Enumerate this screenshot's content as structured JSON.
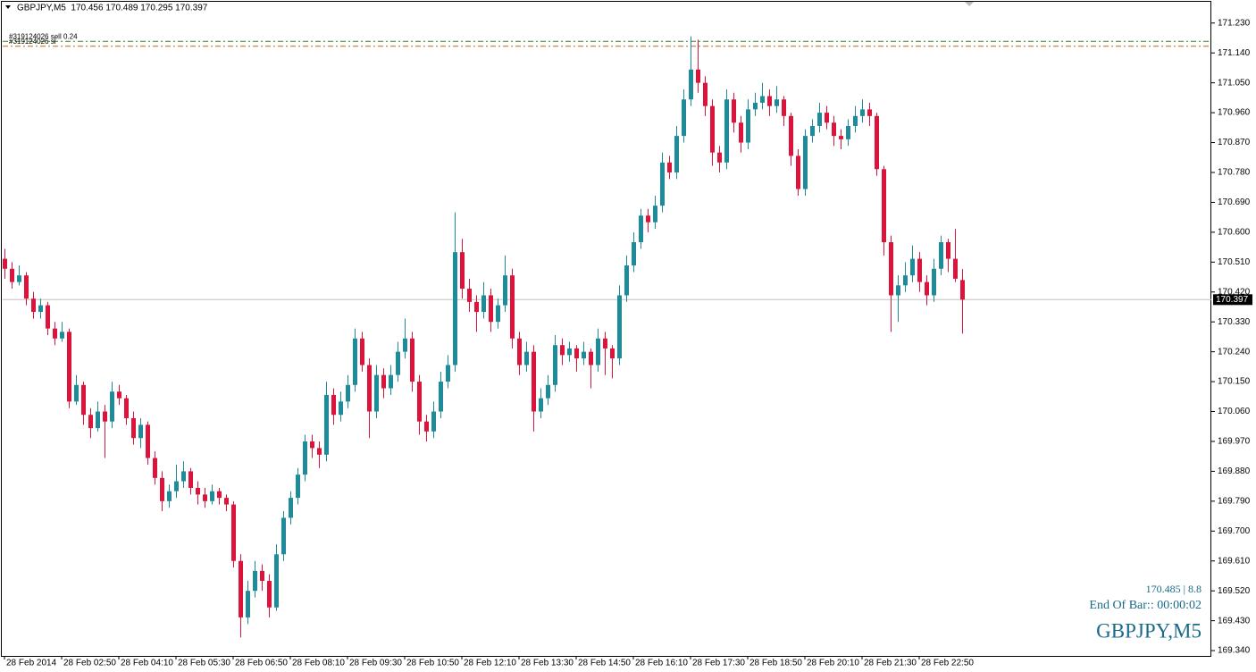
{
  "chart_data": {
    "type": "candlestick",
    "header": "GBPJPY,M5  170.456 170.489 170.295 170.397",
    "bull_color": "#1e8b9b",
    "bear_color": "#dc143c",
    "ylim": [
      169.324,
      171.294
    ],
    "yticks": [
      {
        "value": 171.23,
        "label": "171.230"
      },
      {
        "value": 171.14,
        "label": "171.140"
      },
      {
        "value": 171.05,
        "label": "171.050"
      },
      {
        "value": 170.96,
        "label": "170.960"
      },
      {
        "value": 170.87,
        "label": "170.870"
      },
      {
        "value": 170.78,
        "label": "170.780"
      },
      {
        "value": 170.69,
        "label": "170.690"
      },
      {
        "value": 170.6,
        "label": "170.600"
      },
      {
        "value": 170.51,
        "label": "170.510"
      },
      {
        "value": 170.42,
        "label": "170.420"
      },
      {
        "value": 170.33,
        "label": "170.330"
      },
      {
        "value": 170.24,
        "label": "170.240"
      },
      {
        "value": 170.15,
        "label": "170.150"
      },
      {
        "value": 170.06,
        "label": "170.060"
      },
      {
        "value": 169.97,
        "label": "169.970"
      },
      {
        "value": 169.88,
        "label": "169.880"
      },
      {
        "value": 169.79,
        "label": "169.790"
      },
      {
        "value": 169.7,
        "label": "169.700"
      },
      {
        "value": 169.61,
        "label": "169.610"
      },
      {
        "value": 169.52,
        "label": "169.520"
      },
      {
        "value": 169.43,
        "label": "169.430"
      },
      {
        "value": 169.34,
        "label": "169.340"
      }
    ],
    "xticks": [
      {
        "value": 0,
        "label": "28 Feb 2014"
      },
      {
        "value": 8,
        "label": "28 Feb 02:50"
      },
      {
        "value": 16,
        "label": "28 Feb 04:10"
      },
      {
        "value": 24,
        "label": "28 Feb 05:30"
      },
      {
        "value": 32,
        "label": "28 Feb 06:50"
      },
      {
        "value": 40,
        "label": "28 Feb 08:10"
      },
      {
        "value": 48,
        "label": "28 Feb 09:30"
      },
      {
        "value": 56,
        "label": "28 Feb 10:50"
      },
      {
        "value": 64,
        "label": "28 Feb 12:10"
      },
      {
        "value": 72,
        "label": "28 Feb 13:30"
      },
      {
        "value": 80,
        "label": "28 Feb 14:50"
      },
      {
        "value": 88,
        "label": "28 Feb 16:10"
      },
      {
        "value": 96,
        "label": "28 Feb 17:30"
      },
      {
        "value": 104,
        "label": "28 Feb 18:50"
      },
      {
        "value": 112,
        "label": "28 Feb 20:10"
      },
      {
        "value": 120,
        "label": "28 Feb 21:30"
      },
      {
        "value": 128,
        "label": "28 Feb 22:50"
      }
    ],
    "current_price": {
      "value": 170.397,
      "label": "170.397"
    },
    "orders": [
      {
        "label": "#319124026 sell 0.24",
        "price": 171.175,
        "color": "#2e7d32"
      },
      {
        "label": "#319124026 sl",
        "price": 171.16,
        "color": "#cc6600"
      }
    ],
    "info": {
      "price_spread": "170.485 | 8.8",
      "end_of_bar": "End Of Bar:: 00:00:02",
      "symbol": "GBPJPY,M5"
    },
    "ohlc": [
      [
        170.52,
        170.55,
        170.46,
        170.49
      ],
      [
        170.49,
        170.51,
        170.43,
        170.45
      ],
      [
        170.45,
        170.5,
        170.44,
        170.47
      ],
      [
        170.47,
        170.48,
        170.38,
        170.4
      ],
      [
        170.4,
        170.42,
        170.34,
        170.36
      ],
      [
        170.36,
        170.4,
        170.34,
        170.38
      ],
      [
        170.38,
        170.39,
        170.29,
        170.31
      ],
      [
        170.31,
        170.33,
        170.26,
        170.28
      ],
      [
        170.28,
        170.33,
        170.27,
        170.3
      ],
      [
        170.3,
        170.31,
        170.07,
        170.09
      ],
      [
        170.09,
        170.17,
        170.08,
        170.14
      ],
      [
        170.14,
        170.15,
        170.02,
        170.05
      ],
      [
        170.05,
        170.07,
        169.98,
        170.01
      ],
      [
        170.01,
        170.09,
        170.0,
        170.06
      ],
      [
        170.06,
        170.08,
        169.92,
        170.03
      ],
      [
        170.03,
        170.15,
        170.01,
        170.12
      ],
      [
        170.12,
        170.14,
        170.08,
        170.1
      ],
      [
        170.1,
        170.11,
        170.02,
        170.04
      ],
      [
        170.04,
        170.06,
        169.96,
        169.98
      ],
      [
        169.98,
        170.04,
        169.95,
        170.02
      ],
      [
        170.02,
        170.03,
        169.9,
        169.92
      ],
      [
        169.92,
        169.94,
        169.84,
        169.86
      ],
      [
        169.86,
        169.88,
        169.76,
        169.79
      ],
      [
        169.79,
        169.84,
        169.77,
        169.82
      ],
      [
        169.82,
        169.9,
        169.8,
        169.85
      ],
      [
        169.85,
        169.91,
        169.83,
        169.88
      ],
      [
        169.88,
        169.89,
        169.81,
        169.83
      ],
      [
        169.83,
        169.85,
        169.78,
        169.81
      ],
      [
        169.81,
        169.83,
        169.77,
        169.79
      ],
      [
        169.79,
        169.84,
        169.78,
        169.82
      ],
      [
        169.82,
        169.83,
        169.78,
        169.8
      ],
      [
        169.8,
        169.81,
        169.76,
        169.78
      ],
      [
        169.78,
        169.79,
        169.59,
        169.61
      ],
      [
        169.61,
        169.63,
        169.38,
        169.44
      ],
      [
        169.44,
        169.55,
        169.42,
        169.52
      ],
      [
        169.52,
        169.61,
        169.5,
        169.58
      ],
      [
        169.58,
        169.6,
        169.52,
        169.55
      ],
      [
        169.55,
        169.57,
        169.44,
        169.47
      ],
      [
        169.47,
        169.66,
        169.46,
        169.63
      ],
      [
        169.63,
        169.76,
        169.61,
        169.74
      ],
      [
        169.74,
        169.82,
        169.72,
        169.8
      ],
      [
        169.8,
        169.89,
        169.78,
        169.87
      ],
      [
        169.87,
        169.99,
        169.85,
        169.97
      ],
      [
        169.97,
        169.99,
        169.92,
        169.95
      ],
      [
        169.95,
        169.97,
        169.89,
        169.93
      ],
      [
        169.93,
        170.15,
        169.91,
        170.11
      ],
      [
        170.11,
        170.13,
        170.02,
        170.05
      ],
      [
        170.05,
        170.12,
        170.03,
        170.09
      ],
      [
        170.09,
        170.17,
        170.07,
        170.14
      ],
      [
        170.14,
        170.31,
        170.12,
        170.28
      ],
      [
        170.28,
        170.3,
        170.18,
        170.2
      ],
      [
        170.2,
        170.22,
        169.98,
        170.06
      ],
      [
        170.06,
        170.2,
        170.04,
        170.17
      ],
      [
        170.17,
        170.19,
        170.1,
        170.13
      ],
      [
        170.13,
        170.2,
        170.11,
        170.17
      ],
      [
        170.17,
        170.27,
        170.15,
        170.24
      ],
      [
        170.24,
        170.34,
        170.22,
        170.28
      ],
      [
        170.28,
        170.3,
        170.12,
        170.15
      ],
      [
        170.15,
        170.17,
        169.99,
        170.03
      ],
      [
        170.03,
        170.05,
        169.97,
        170.0
      ],
      [
        170.0,
        170.09,
        169.98,
        170.06
      ],
      [
        170.06,
        170.18,
        170.04,
        170.15
      ],
      [
        170.15,
        170.23,
        170.13,
        170.2
      ],
      [
        170.2,
        170.66,
        170.18,
        170.54
      ],
      [
        170.54,
        170.58,
        170.4,
        170.43
      ],
      [
        170.43,
        170.46,
        170.36,
        170.39
      ],
      [
        170.39,
        170.41,
        170.3,
        170.36
      ],
      [
        170.36,
        170.45,
        170.34,
        170.41
      ],
      [
        170.41,
        170.43,
        170.3,
        170.33
      ],
      [
        170.33,
        170.4,
        170.31,
        170.38
      ],
      [
        170.38,
        170.53,
        170.36,
        170.47
      ],
      [
        170.47,
        170.49,
        170.25,
        170.28
      ],
      [
        170.28,
        170.3,
        170.17,
        170.2
      ],
      [
        170.2,
        170.27,
        170.18,
        170.24
      ],
      [
        170.24,
        170.26,
        170.0,
        170.06
      ],
      [
        170.06,
        170.13,
        170.04,
        170.1
      ],
      [
        170.1,
        170.17,
        170.08,
        170.14
      ],
      [
        170.14,
        170.29,
        170.12,
        170.26
      ],
      [
        170.26,
        170.28,
        170.2,
        170.23
      ],
      [
        170.23,
        170.27,
        170.21,
        170.25
      ],
      [
        170.25,
        170.26,
        170.18,
        170.22
      ],
      [
        170.22,
        170.27,
        170.2,
        170.24
      ],
      [
        170.24,
        170.25,
        170.13,
        170.2
      ],
      [
        170.2,
        170.31,
        170.18,
        170.28
      ],
      [
        170.28,
        170.3,
        170.17,
        170.25
      ],
      [
        170.25,
        170.26,
        170.16,
        170.22
      ],
      [
        170.22,
        170.44,
        170.2,
        170.41
      ],
      [
        170.41,
        170.53,
        170.39,
        170.5
      ],
      [
        170.5,
        170.6,
        170.48,
        170.57
      ],
      [
        170.57,
        170.67,
        170.55,
        170.65
      ],
      [
        170.65,
        170.67,
        170.6,
        170.63
      ],
      [
        170.63,
        170.71,
        170.61,
        170.68
      ],
      [
        170.68,
        170.84,
        170.66,
        170.81
      ],
      [
        170.81,
        170.83,
        170.76,
        170.78
      ],
      [
        170.78,
        170.92,
        170.76,
        170.89
      ],
      [
        170.89,
        171.03,
        170.87,
        171.0
      ],
      [
        171.0,
        171.19,
        170.98,
        171.09
      ],
      [
        171.09,
        171.18,
        171.02,
        171.05
      ],
      [
        171.05,
        171.07,
        170.95,
        170.98
      ],
      [
        170.98,
        171.0,
        170.8,
        170.84
      ],
      [
        170.84,
        170.86,
        170.78,
        170.81
      ],
      [
        170.81,
        171.03,
        170.79,
        171.0
      ],
      [
        171.0,
        171.02,
        170.9,
        170.93
      ],
      [
        170.93,
        170.95,
        170.84,
        170.87
      ],
      [
        170.87,
        171.0,
        170.85,
        170.97
      ],
      [
        170.97,
        171.02,
        170.95,
        170.99
      ],
      [
        170.99,
        171.05,
        170.97,
        171.01
      ],
      [
        171.01,
        171.03,
        170.95,
        170.98
      ],
      [
        170.98,
        171.04,
        170.96,
        171.0
      ],
      [
        171.0,
        171.01,
        170.92,
        170.95
      ],
      [
        170.95,
        170.96,
        170.8,
        170.83
      ],
      [
        170.83,
        170.85,
        170.71,
        170.73
      ],
      [
        170.73,
        170.91,
        170.71,
        170.89
      ],
      [
        170.89,
        170.94,
        170.87,
        170.92
      ],
      [
        170.92,
        170.99,
        170.9,
        170.96
      ],
      [
        170.96,
        170.98,
        170.91,
        170.93
      ],
      [
        170.93,
        170.95,
        170.86,
        170.89
      ],
      [
        170.89,
        170.91,
        170.85,
        170.88
      ],
      [
        170.88,
        170.94,
        170.86,
        170.92
      ],
      [
        170.92,
        170.98,
        170.9,
        170.95
      ],
      [
        170.95,
        171.0,
        170.93,
        170.97
      ],
      [
        170.97,
        170.99,
        170.92,
        170.95
      ],
      [
        170.95,
        170.96,
        170.77,
        170.79
      ],
      [
        170.79,
        170.8,
        170.53,
        170.57
      ],
      [
        170.57,
        170.59,
        170.3,
        170.41
      ],
      [
        170.41,
        170.47,
        170.33,
        170.44
      ],
      [
        170.44,
        170.51,
        170.42,
        170.47
      ],
      [
        170.47,
        170.56,
        170.45,
        170.52
      ],
      [
        170.52,
        170.54,
        170.42,
        170.45
      ],
      [
        170.45,
        170.47,
        170.38,
        170.41
      ],
      [
        170.41,
        170.52,
        170.39,
        170.49
      ],
      [
        170.49,
        170.59,
        170.47,
        170.57
      ],
      [
        170.57,
        170.58,
        170.48,
        170.52
      ],
      [
        170.52,
        170.61,
        170.45,
        170.46
      ],
      [
        170.456,
        170.489,
        170.295,
        170.397
      ]
    ]
  }
}
